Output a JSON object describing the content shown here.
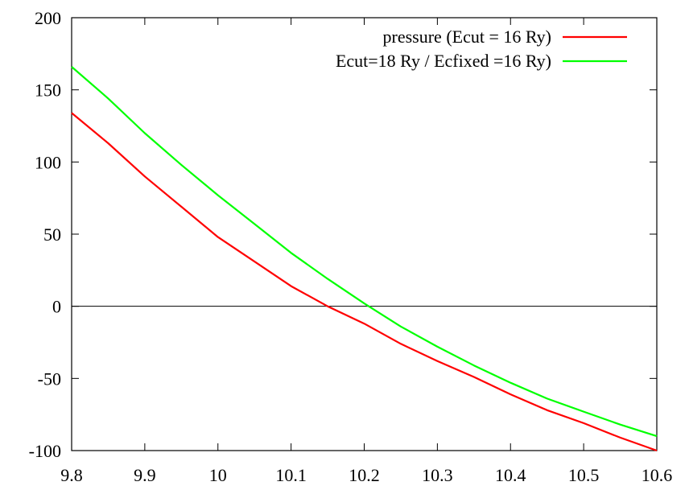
{
  "chart_data": {
    "type": "line",
    "title": "",
    "xlabel": "",
    "ylabel": "",
    "xlim": [
      9.8,
      10.6
    ],
    "ylim": [
      -100,
      200
    ],
    "x_ticks": [
      "9.8",
      "9.9",
      "10",
      "10.1",
      "10.2",
      "10.3",
      "10.4",
      "10.5",
      "10.6"
    ],
    "y_ticks": [
      "200",
      "150",
      "100",
      "50",
      "0",
      "-50",
      "-100"
    ],
    "x_tick_values": [
      9.8,
      9.9,
      10.0,
      10.1,
      10.2,
      10.3,
      10.4,
      10.5,
      10.6
    ],
    "y_tick_values": [
      200,
      150,
      100,
      50,
      0,
      -50,
      -100
    ],
    "grid": false,
    "zero_line": true,
    "legend_position": "top-right",
    "series": [
      {
        "name": "pressure (Ecut = 16 Ry)",
        "color": "#ff0000",
        "x": [
          9.8,
          9.85,
          9.9,
          9.95,
          10.0,
          10.05,
          10.1,
          10.15,
          10.2,
          10.25,
          10.3,
          10.35,
          10.4,
          10.45,
          10.5,
          10.55,
          10.6
        ],
        "y": [
          134,
          113,
          90,
          69,
          48,
          31,
          14,
          0,
          -12,
          -26,
          -38,
          -49,
          -61,
          -72,
          -81,
          -91,
          -100
        ]
      },
      {
        "name": "Ecut=18 Ry / Ecfixed =16 Ry)",
        "color": "#00ff00",
        "x": [
          9.8,
          9.85,
          9.9,
          9.95,
          10.0,
          10.05,
          10.1,
          10.15,
          10.2,
          10.25,
          10.3,
          10.35,
          10.4,
          10.45,
          10.5,
          10.55,
          10.6
        ],
        "y": [
          166,
          144,
          120,
          98,
          77,
          57,
          37,
          19,
          2,
          -14,
          -28,
          -41,
          -53,
          -64,
          -73,
          -82,
          -90
        ]
      }
    ]
  }
}
